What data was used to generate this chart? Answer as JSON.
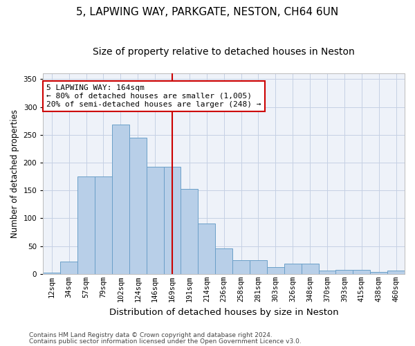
{
  "title1": "5, LAPWING WAY, PARKGATE, NESTON, CH64 6UN",
  "title2": "Size of property relative to detached houses in Neston",
  "xlabel": "Distribution of detached houses by size in Neston",
  "ylabel": "Number of detached properties",
  "categories": [
    "12sqm",
    "34sqm",
    "57sqm",
    "79sqm",
    "102sqm",
    "124sqm",
    "146sqm",
    "169sqm",
    "191sqm",
    "214sqm",
    "236sqm",
    "258sqm",
    "281sqm",
    "303sqm",
    "326sqm",
    "348sqm",
    "370sqm",
    "393sqm",
    "415sqm",
    "438sqm",
    "460sqm"
  ],
  "values": [
    2,
    22,
    175,
    175,
    268,
    245,
    192,
    192,
    153,
    90,
    46,
    25,
    25,
    12,
    19,
    19,
    6,
    7,
    7,
    4,
    6
  ],
  "bar_color": "#b8cfe8",
  "bar_edge_color": "#6a9fc8",
  "vline_index": 7,
  "vline_color": "#cc0000",
  "annotation_text": "5 LAPWING WAY: 164sqm\n← 80% of detached houses are smaller (1,005)\n20% of semi-detached houses are larger (248) →",
  "annotation_box_facecolor": "white",
  "annotation_box_edgecolor": "#cc0000",
  "ylim_max": 360,
  "yticks": [
    0,
    50,
    100,
    150,
    200,
    250,
    300,
    350
  ],
  "footer1": "Contains HM Land Registry data © Crown copyright and database right 2024.",
  "footer2": "Contains public sector information licensed under the Open Government Licence v3.0.",
  "bg_color": "#eef2f9",
  "grid_color": "#c5d0e4",
  "title1_fontsize": 11,
  "title2_fontsize": 10,
  "tick_fontsize": 7.5,
  "ylabel_fontsize": 8.5,
  "xlabel_fontsize": 9.5,
  "annotation_fontsize": 8,
  "footer_fontsize": 6.5
}
